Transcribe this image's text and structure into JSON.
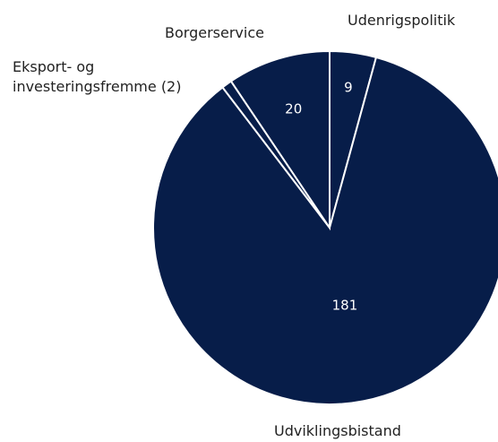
{
  "chart_data": {
    "type": "pie",
    "categories": [
      "Udenrigspolitik",
      "Udviklingsbistand",
      "Eksport- og investeringsfremme (2)",
      "Borgerservice"
    ],
    "values": [
      9,
      181,
      2,
      20
    ],
    "color": "#071d49"
  }
}
